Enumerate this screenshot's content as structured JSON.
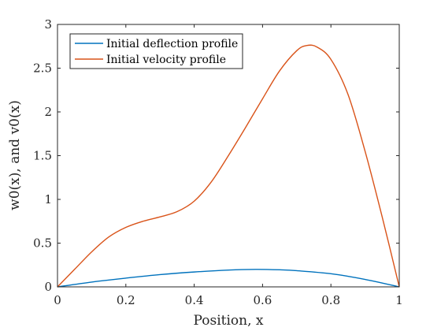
{
  "chart_data": {
    "type": "line",
    "xlabel": "Position, x",
    "ylabel": "w0(x), and v0(x)",
    "xlim": [
      0,
      1
    ],
    "ylim": [
      0,
      3
    ],
    "xticks": [
      0,
      0.2,
      0.4,
      0.6,
      0.8,
      1
    ],
    "yticks": [
      0,
      0.5,
      1,
      1.5,
      2,
      2.5,
      3
    ],
    "xtick_labels": [
      "0",
      "0.2",
      "0.4",
      "0.6",
      "0.8",
      "1"
    ],
    "ytick_labels": [
      "0",
      "0.5",
      "1",
      "1.5",
      "2",
      "2.5",
      "3"
    ],
    "grid": false,
    "legend_position": "top-left",
    "series": [
      {
        "name": "Initial deflection profile",
        "color": "#0072bd",
        "x": [
          0,
          0.1,
          0.2,
          0.3,
          0.4,
          0.5,
          0.58,
          0.65,
          0.7,
          0.8,
          0.9,
          1.0
        ],
        "y": [
          0,
          0.055,
          0.1,
          0.14,
          0.17,
          0.192,
          0.2,
          0.195,
          0.185,
          0.15,
          0.085,
          0
        ]
      },
      {
        "name": "Initial velocity profile",
        "color": "#d95319",
        "x": [
          0,
          0.05,
          0.1,
          0.15,
          0.2,
          0.25,
          0.3,
          0.35,
          0.4,
          0.45,
          0.5,
          0.55,
          0.6,
          0.65,
          0.7,
          0.73,
          0.76,
          0.8,
          0.85,
          0.9,
          0.95,
          1.0
        ],
        "y": [
          0,
          0.2,
          0.4,
          0.57,
          0.68,
          0.75,
          0.8,
          0.86,
          0.98,
          1.2,
          1.5,
          1.82,
          2.15,
          2.47,
          2.7,
          2.76,
          2.74,
          2.6,
          2.2,
          1.55,
          0.8,
          0
        ]
      }
    ]
  }
}
